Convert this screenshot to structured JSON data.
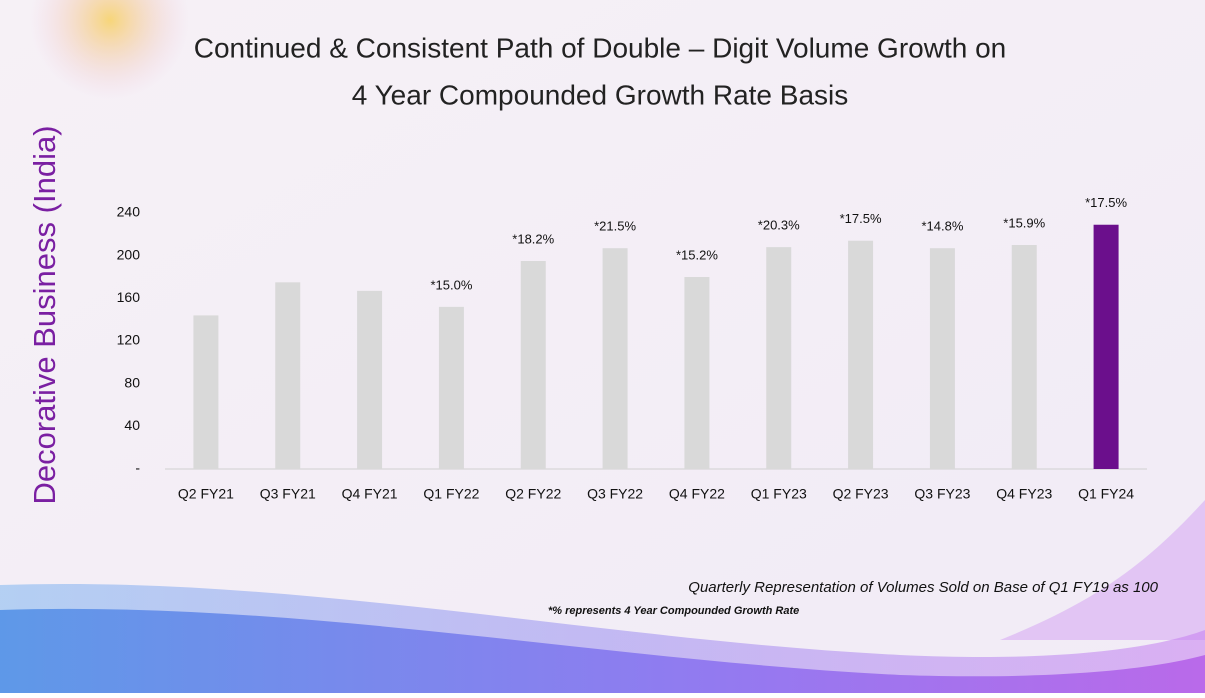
{
  "chart_data": {
    "type": "bar",
    "title": "Continued & Consistent Path of Double – Digit Volume Growth on",
    "subtitle": "4 Year Compounded Growth Rate Basis",
    "y_label": "Decorative Business (India)",
    "categories": [
      "Q2 FY21",
      "Q3 FY21",
      "Q4 FY21",
      "Q1 FY22",
      "Q2 FY22",
      "Q3 FY22",
      "Q4 FY22",
      "Q1 FY23",
      "Q2 FY23",
      "Q3 FY23",
      "Q4 FY23",
      "Q1 FY24"
    ],
    "values": [
      144,
      175,
      167,
      152,
      195,
      207,
      180,
      208,
      214,
      207,
      210,
      229
    ],
    "bar_labels": [
      null,
      null,
      null,
      "*15.0%",
      "*18.2%",
      "*21.5%",
      "*15.2%",
      "*20.3%",
      "*17.5%",
      "*14.8%",
      "*15.9%",
      "*17.5%"
    ],
    "colors": [
      "#d9d9d9",
      "#d9d9d9",
      "#d9d9d9",
      "#d9d9d9",
      "#d9d9d9",
      "#d9d9d9",
      "#d9d9d9",
      "#d9d9d9",
      "#d9d9d9",
      "#d9d9d9",
      "#d9d9d9",
      "#6b0f8c"
    ],
    "ylim": [
      0,
      240
    ],
    "yticks": [
      {
        "value": 0,
        "label": "-"
      },
      40,
      80,
      120,
      160,
      200,
      240
    ],
    "notes": [
      "Quarterly Representation of Volumes Sold on Base of Q1 FY19 as 100",
      "*% represents 4 Year Compounded Growth Rate"
    ]
  }
}
